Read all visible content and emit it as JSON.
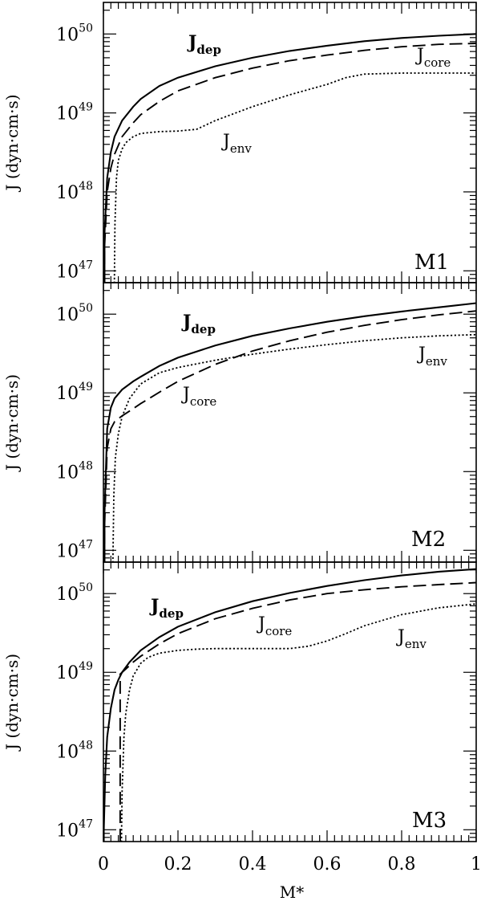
{
  "figure": {
    "xlabel": "M*",
    "x_ticklabels": [
      "0",
      "0.2",
      "0.4",
      "0.6",
      "0.8",
      "1"
    ]
  },
  "chart_data": [
    {
      "type": "line",
      "panel_label": "M1",
      "ylabel": "J (dyn·cm·s)",
      "xlim": [
        0,
        1
      ],
      "ylim_log10": [
        46.85,
        50.4
      ],
      "y_scale": "log",
      "ytick_labels": [
        {
          "base": "10",
          "exp": "47",
          "value": 1e+47
        },
        {
          "base": "10",
          "exp": "48",
          "value": 1e+48
        },
        {
          "base": "10",
          "exp": "49",
          "value": 1e+49
        },
        {
          "base": "10",
          "exp": "50",
          "value": 1e+50
        }
      ],
      "series": [
        {
          "name": "J",
          "sub": "dep",
          "bold": true,
          "style": "solid",
          "x": [
            0.003,
            0.01,
            0.02,
            0.03,
            0.05,
            0.08,
            0.1,
            0.15,
            0.2,
            0.3,
            0.4,
            0.5,
            0.6,
            0.7,
            0.8,
            0.9,
            1.0
          ],
          "y": [
            3e+47,
            1.5e+48,
            3.2e+48,
            5e+48,
            8e+48,
            1.2e+49,
            1.5e+49,
            2.2e+49,
            2.8e+49,
            3.9e+49,
            5e+49,
            6.1e+49,
            7.1e+49,
            8.1e+49,
            8.9e+49,
            9.5e+49,
            1e+50
          ]
        },
        {
          "name": "J",
          "sub": "core",
          "bold": false,
          "style": "dashed",
          "x": [
            0.003,
            0.01,
            0.02,
            0.03,
            0.05,
            0.08,
            0.1,
            0.15,
            0.2,
            0.3,
            0.4,
            0.5,
            0.6,
            0.7,
            0.8,
            0.9,
            1.0
          ],
          "y": [
            2e+47,
            1e+48,
            2e+48,
            3e+48,
            5e+48,
            7.5e+48,
            9.5e+48,
            1.4e+49,
            1.9e+49,
            2.8e+49,
            3.7e+49,
            4.6e+49,
            5.4e+49,
            6.2e+49,
            6.9e+49,
            7.4e+49,
            7.6e+49
          ]
        },
        {
          "name": "J",
          "sub": "env",
          "bold": false,
          "style": "dotted",
          "x": [
            0.029,
            0.031,
            0.035,
            0.04,
            0.05,
            0.06,
            0.08,
            0.1,
            0.15,
            0.2,
            0.25,
            0.3,
            0.4,
            0.5,
            0.6,
            0.65,
            0.7,
            0.8,
            0.9,
            1.0
          ],
          "y": [
            5e+46,
            4e+47,
            1.5e+48,
            2.5e+48,
            3.5e+48,
            4.2e+48,
            5e+48,
            5.5e+48,
            5.8e+48,
            5.9e+48,
            6.2e+48,
            8e+48,
            1.2e+49,
            1.7e+49,
            2.3e+49,
            2.8e+49,
            3.1e+49,
            3.2e+49,
            3.2e+49,
            3.2e+49
          ]
        }
      ]
    },
    {
      "type": "line",
      "panel_label": "M2",
      "ylabel": "J (dyn·cm·s)",
      "xlim": [
        0,
        1
      ],
      "ylim_log10": [
        46.85,
        50.4
      ],
      "y_scale": "log",
      "ytick_labels": [
        {
          "base": "10",
          "exp": "47",
          "value": 1e+47
        },
        {
          "base": "10",
          "exp": "48",
          "value": 1e+48
        },
        {
          "base": "10",
          "exp": "49",
          "value": 1e+49
        },
        {
          "base": "10",
          "exp": "50",
          "value": 1e+50
        }
      ],
      "series": [
        {
          "name": "J",
          "sub": "dep",
          "bold": true,
          "style": "solid",
          "x": [
            0.003,
            0.01,
            0.02,
            0.03,
            0.05,
            0.08,
            0.1,
            0.15,
            0.2,
            0.3,
            0.4,
            0.5,
            0.6,
            0.7,
            0.8,
            0.9,
            1.0
          ],
          "y": [
            3e+47,
            3.5e+48,
            6.5e+48,
            8.5e+48,
            1.1e+49,
            1.4e+49,
            1.6e+49,
            2.2e+49,
            2.8e+49,
            4e+49,
            5.3e+49,
            6.6e+49,
            8e+49,
            9.4e+49,
            1.08e+50,
            1.22e+50,
            1.38e+50
          ]
        },
        {
          "name": "J",
          "sub": "core",
          "bold": false,
          "style": "dashed",
          "x": [
            0.003,
            0.01,
            0.02,
            0.03,
            0.05,
            0.08,
            0.1,
            0.15,
            0.2,
            0.3,
            0.4,
            0.5,
            0.6,
            0.7,
            0.8,
            0.9,
            1.0
          ],
          "y": [
            2e+47,
            2e+48,
            3.5e+48,
            4.3e+48,
            5.1e+48,
            6.3e+48,
            7.3e+48,
            1.02e+49,
            1.4e+49,
            2.3e+49,
            3.4e+49,
            4.6e+49,
            5.9e+49,
            7.2e+49,
            8.5e+49,
            9.8e+49,
            1.1e+50
          ]
        },
        {
          "name": "J",
          "sub": "env",
          "bold": false,
          "style": "dotted",
          "x": [
            0.025,
            0.028,
            0.032,
            0.04,
            0.05,
            0.07,
            0.1,
            0.15,
            0.2,
            0.3,
            0.4,
            0.5,
            0.6,
            0.7,
            0.8,
            0.9,
            1.0
          ],
          "y": [
            5e+46,
            5e+47,
            1.5e+48,
            3e+48,
            5e+48,
            8.5e+48,
            1.3e+49,
            1.8e+49,
            2.1e+49,
            2.6e+49,
            3.1e+49,
            3.6e+49,
            4.1e+49,
            4.6e+49,
            5e+49,
            5.3e+49,
            5.5e+49
          ]
        }
      ]
    },
    {
      "type": "line",
      "panel_label": "M3",
      "ylabel": "J (dyn·cm·s)",
      "xlim": [
        0,
        1
      ],
      "ylim_log10": [
        46.85,
        50.4
      ],
      "y_scale": "log",
      "ytick_labels": [
        {
          "base": "10",
          "exp": "47",
          "value": 1e+47
        },
        {
          "base": "10",
          "exp": "48",
          "value": 1e+48
        },
        {
          "base": "10",
          "exp": "49",
          "value": 1e+49
        },
        {
          "base": "10",
          "exp": "50",
          "value": 1e+50
        }
      ],
      "series": [
        {
          "name": "J",
          "sub": "dep",
          "bold": true,
          "style": "solid",
          "x": [
            0.001,
            0.005,
            0.01,
            0.02,
            0.03,
            0.04,
            0.05,
            0.07,
            0.1,
            0.15,
            0.2,
            0.3,
            0.4,
            0.5,
            0.6,
            0.7,
            0.8,
            0.9,
            1.0
          ],
          "y": [
            1e+47,
            5e+47,
            1.5e+48,
            3.5e+48,
            6e+48,
            8e+48,
            1e+49,
            1.35e+49,
            1.9e+49,
            2.8e+49,
            3.8e+49,
            5.8e+49,
            8e+49,
            1.02e+50,
            1.25e+50,
            1.48e+50,
            1.7e+50,
            1.9e+50,
            2.05e+50
          ]
        },
        {
          "name": "J",
          "sub": "core",
          "bold": false,
          "style": "dashed",
          "x": [
            0.045,
            0.06,
            0.08,
            0.1,
            0.15,
            0.2,
            0.3,
            0.4,
            0.5,
            0.6,
            0.7,
            0.8,
            0.9,
            1.0
          ],
          "y": [
            9.5e+48,
            1.1e+49,
            1.35e+49,
            1.6e+49,
            2.3e+49,
            3.1e+49,
            4.8e+49,
            6.5e+49,
            8.3e+49,
            1e+50,
            1.12e+50,
            1.22e+50,
            1.3e+50,
            1.38e+50
          ]
        },
        {
          "name": "J",
          "sub": "env",
          "bold": false,
          "style": "dotted",
          "x": [
            0.048,
            0.05,
            0.055,
            0.06,
            0.07,
            0.08,
            0.1,
            0.12,
            0.15,
            0.2,
            0.25,
            0.3,
            0.4,
            0.5,
            0.55,
            0.6,
            0.65,
            0.7,
            0.8,
            0.9,
            1.0
          ],
          "y": [
            5e+46,
            3e+47,
            1.5e+48,
            3e+48,
            6e+48,
            9e+48,
            1.3e+49,
            1.55e+49,
            1.75e+49,
            1.9e+49,
            1.97e+49,
            2e+49,
            2e+49,
            2e+49,
            2.15e+49,
            2.5e+49,
            3.1e+49,
            3.9e+49,
            5.4e+49,
            6.6e+49,
            7.4e+49
          ]
        }
      ]
    }
  ]
}
